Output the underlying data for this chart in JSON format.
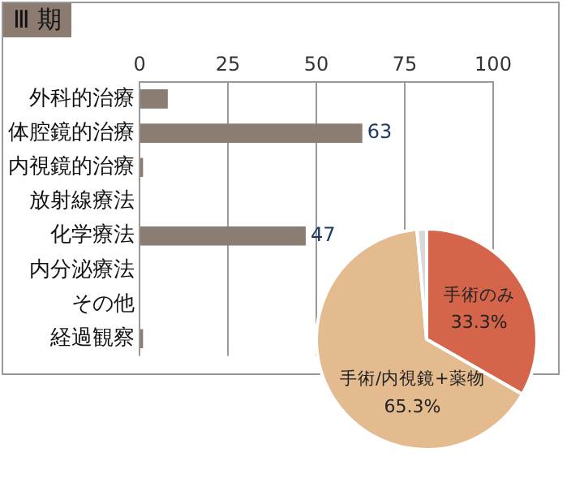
{
  "chart_data": [
    {
      "type": "bar",
      "title": "Ⅲ 期",
      "orientation": "horizontal",
      "categories": [
        "外科的治療",
        "体腔鏡的治療",
        "内視鏡的治療",
        "放射線療法",
        "化学療法",
        "内分泌療法",
        "その他",
        "経過観察"
      ],
      "values": [
        8,
        63,
        1,
        0,
        47,
        0,
        0,
        1
      ],
      "color": "#8c7d72",
      "value_labels": [
        null,
        "63",
        null,
        null,
        "47",
        null,
        null,
        null
      ],
      "xlim": [
        0,
        100
      ],
      "xticks": [
        0,
        25,
        50,
        75,
        100
      ],
      "grid": "x",
      "legend": false
    },
    {
      "type": "pie",
      "categories": [
        "手術のみ",
        "手術/内視鏡+薬物",
        null
      ],
      "values": [
        33.3,
        65.3,
        1.4
      ],
      "colors": [
        "#d4654a",
        "#e3bb8f",
        "#d9d9d9"
      ],
      "value_labels": [
        "33.3%",
        "65.3%",
        null
      ],
      "legend": false
    }
  ]
}
